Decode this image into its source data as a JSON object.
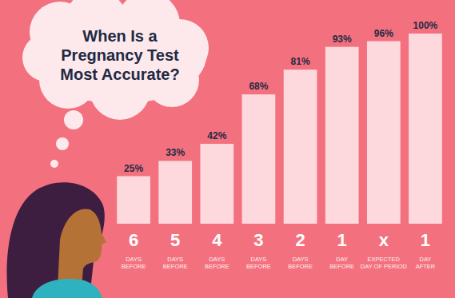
{
  "chart_data": {
    "type": "bar",
    "title": "When Is a\nPregnancy Test\nMost Accurate?",
    "categories": [
      "6\nDAYS\nBEFORE",
      "5\nDAYS\nBEFORE",
      "4\nDAYS\nBEFORE",
      "3\nDAYS\nBEFORE",
      "2\nDAYS\nBEFORE",
      "1\nDAY\nBEFORE",
      "x\nEXPECTED\nDAY OF PERIOD",
      "1\nDAY\nAFTER"
    ],
    "values": [
      25,
      33,
      42,
      68,
      81,
      93,
      96,
      100
    ],
    "value_labels": [
      "25%",
      "33%",
      "42%",
      "68%",
      "81%",
      "93%",
      "96%",
      "100%"
    ],
    "color": "#fdd9dd",
    "ylim": [
      0,
      100
    ],
    "data_labels": true,
    "tick_labels": "x",
    "grid": false
  }
}
